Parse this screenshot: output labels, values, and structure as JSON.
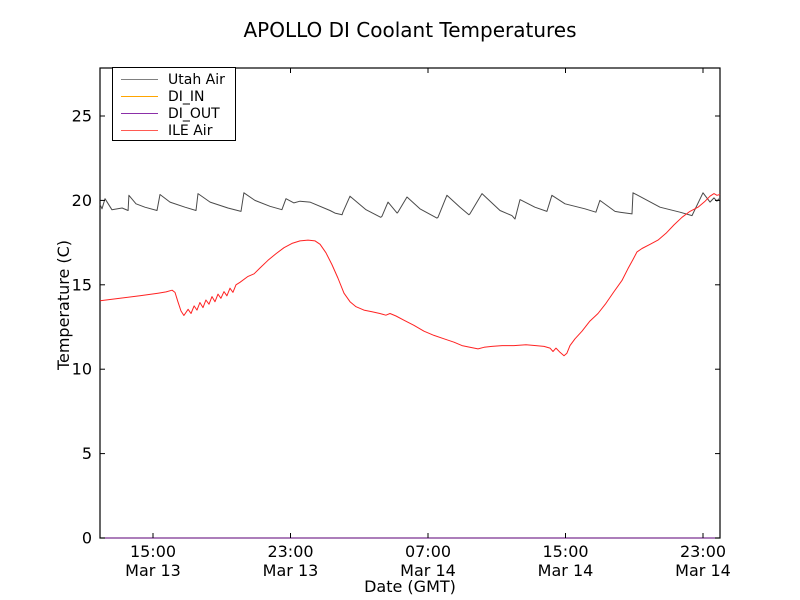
{
  "figure": {
    "background": "#ffffff",
    "spine_color": "#000000",
    "tick_direction": "in"
  },
  "chart_data": {
    "type": "line",
    "title": "APOLLO DI Coolant Temperatures",
    "xlabel": "Date (GMT)",
    "ylabel": "Temperature (C)",
    "x_unit": "hours since Mar 13 00:00 GMT",
    "xlim_hours": [
      11.92,
      47.99
    ],
    "ylim": [
      0,
      27.85
    ],
    "yticks": [
      0,
      5,
      10,
      15,
      20,
      25
    ],
    "xticks": [
      {
        "hour": 15,
        "time": "15:00",
        "date": "Mar 13"
      },
      {
        "hour": 23,
        "time": "23:00",
        "date": "Mar 13"
      },
      {
        "hour": 31,
        "time": "07:00",
        "date": "Mar 14"
      },
      {
        "hour": 39,
        "time": "15:00",
        "date": "Mar 14"
      },
      {
        "hour": 47,
        "time": "23:00",
        "date": "Mar 14"
      }
    ],
    "grid": false,
    "legend": {
      "position": "upper-left",
      "entries": [
        "Utah Air",
        "DI_IN",
        "DI_OUT",
        "ILE Air"
      ]
    },
    "series": [
      {
        "name": "Utah Air",
        "color": "#4a4a4a",
        "legend_color": "#808080",
        "points": [
          [
            11.92,
            19.75
          ],
          [
            12.03,
            19.5
          ],
          [
            12.21,
            20.1
          ],
          [
            12.61,
            19.45
          ],
          [
            13.2,
            19.55
          ],
          [
            13.55,
            19.4
          ],
          [
            13.6,
            20.3
          ],
          [
            14.01,
            19.8
          ],
          [
            14.53,
            19.6
          ],
          [
            15.23,
            19.4
          ],
          [
            15.41,
            20.35
          ],
          [
            15.99,
            19.9
          ],
          [
            16.86,
            19.6
          ],
          [
            17.5,
            19.4
          ],
          [
            17.62,
            20.4
          ],
          [
            18.32,
            19.9
          ],
          [
            19.36,
            19.55
          ],
          [
            20.12,
            19.35
          ],
          [
            20.29,
            20.45
          ],
          [
            20.93,
            20.0
          ],
          [
            21.81,
            19.65
          ],
          [
            22.5,
            19.45
          ],
          [
            22.74,
            20.1
          ],
          [
            23.2,
            19.85
          ],
          [
            23.55,
            19.95
          ],
          [
            24.13,
            19.9
          ],
          [
            25.3,
            19.4
          ],
          [
            25.59,
            19.25
          ],
          [
            26.0,
            19.15
          ],
          [
            26.05,
            19.3
          ],
          [
            26.46,
            20.25
          ],
          [
            27.39,
            19.45
          ],
          [
            28.25,
            19.0
          ],
          [
            28.32,
            19.05
          ],
          [
            28.67,
            19.9
          ],
          [
            29.2,
            19.25
          ],
          [
            29.25,
            19.3
          ],
          [
            29.78,
            20.2
          ],
          [
            30.53,
            19.5
          ],
          [
            31.52,
            18.95
          ],
          [
            31.58,
            19.0
          ],
          [
            32.1,
            20.3
          ],
          [
            32.86,
            19.6
          ],
          [
            33.38,
            19.15
          ],
          [
            33.44,
            19.2
          ],
          [
            34.14,
            20.4
          ],
          [
            35.19,
            19.4
          ],
          [
            35.88,
            19.1
          ],
          [
            36.06,
            18.9
          ],
          [
            36.35,
            20.05
          ],
          [
            37.22,
            19.6
          ],
          [
            37.92,
            19.35
          ],
          [
            38.21,
            20.3
          ],
          [
            38.97,
            19.8
          ],
          [
            40.13,
            19.5
          ],
          [
            40.77,
            19.3
          ],
          [
            41.0,
            20.0
          ],
          [
            41.88,
            19.35
          ],
          [
            42.17,
            19.3
          ],
          [
            42.87,
            19.2
          ],
          [
            42.93,
            20.45
          ],
          [
            44.5,
            19.6
          ],
          [
            45.66,
            19.3
          ],
          [
            46.36,
            19.1
          ],
          [
            47.0,
            20.45
          ],
          [
            47.41,
            19.9
          ],
          [
            47.64,
            20.15
          ],
          [
            47.81,
            19.95
          ],
          [
            47.93,
            20.1
          ]
        ]
      },
      {
        "name": "DI_IN",
        "color": "#ffa500",
        "legend_color": "#ffa500",
        "points": [
          [
            11.92,
            0
          ],
          [
            47.99,
            0
          ]
        ]
      },
      {
        "name": "DI_OUT",
        "color": "#8b2fa8",
        "legend_color": "#8b2fa8",
        "points": [
          [
            11.92,
            0
          ],
          [
            47.99,
            0
          ]
        ]
      },
      {
        "name": "ILE Air",
        "color": "#ff2222",
        "legend_color": "#ff5a52",
        "points": [
          [
            11.92,
            14.05
          ],
          [
            13.08,
            14.2
          ],
          [
            14.24,
            14.35
          ],
          [
            15.29,
            14.5
          ],
          [
            15.76,
            14.58
          ],
          [
            16.11,
            14.68
          ],
          [
            16.28,
            14.55
          ],
          [
            16.45,
            14.0
          ],
          [
            16.63,
            13.45
          ],
          [
            16.8,
            13.18
          ],
          [
            17.04,
            13.55
          ],
          [
            17.21,
            13.3
          ],
          [
            17.39,
            13.75
          ],
          [
            17.56,
            13.5
          ],
          [
            17.73,
            13.95
          ],
          [
            17.91,
            13.65
          ],
          [
            18.08,
            14.1
          ],
          [
            18.26,
            13.85
          ],
          [
            18.43,
            14.3
          ],
          [
            18.61,
            14.0
          ],
          [
            18.78,
            14.45
          ],
          [
            18.95,
            14.2
          ],
          [
            19.13,
            14.6
          ],
          [
            19.3,
            14.35
          ],
          [
            19.48,
            14.8
          ],
          [
            19.65,
            14.55
          ],
          [
            19.83,
            15.0
          ],
          [
            20.06,
            15.15
          ],
          [
            20.53,
            15.5
          ],
          [
            20.88,
            15.65
          ],
          [
            21.23,
            16.0
          ],
          [
            21.69,
            16.45
          ],
          [
            22.16,
            16.85
          ],
          [
            22.62,
            17.2
          ],
          [
            23.09,
            17.45
          ],
          [
            23.55,
            17.6
          ],
          [
            24.02,
            17.65
          ],
          [
            24.43,
            17.6
          ],
          [
            24.72,
            17.4
          ],
          [
            25.06,
            16.9
          ],
          [
            25.41,
            16.2
          ],
          [
            25.76,
            15.4
          ],
          [
            26.11,
            14.5
          ],
          [
            26.46,
            14.0
          ],
          [
            26.81,
            13.7
          ],
          [
            27.27,
            13.5
          ],
          [
            27.74,
            13.4
          ],
          [
            28.2,
            13.3
          ],
          [
            28.55,
            13.2
          ],
          [
            28.79,
            13.3
          ],
          [
            29.14,
            13.15
          ],
          [
            29.6,
            12.9
          ],
          [
            30.18,
            12.6
          ],
          [
            30.77,
            12.25
          ],
          [
            31.35,
            12.0
          ],
          [
            31.93,
            11.8
          ],
          [
            32.51,
            11.6
          ],
          [
            32.98,
            11.4
          ],
          [
            33.44,
            11.3
          ],
          [
            33.91,
            11.2
          ],
          [
            34.26,
            11.3
          ],
          [
            34.72,
            11.35
          ],
          [
            35.31,
            11.4
          ],
          [
            36.0,
            11.4
          ],
          [
            36.7,
            11.45
          ],
          [
            37.28,
            11.4
          ],
          [
            37.75,
            11.35
          ],
          [
            38.1,
            11.25
          ],
          [
            38.27,
            11.05
          ],
          [
            38.45,
            11.25
          ],
          [
            38.68,
            11.0
          ],
          [
            38.91,
            10.8
          ],
          [
            39.08,
            10.95
          ],
          [
            39.26,
            11.4
          ],
          [
            39.55,
            11.8
          ],
          [
            39.96,
            12.25
          ],
          [
            40.42,
            12.85
          ],
          [
            40.89,
            13.3
          ],
          [
            41.35,
            13.9
          ],
          [
            41.82,
            14.6
          ],
          [
            42.28,
            15.25
          ],
          [
            42.63,
            15.95
          ],
          [
            42.93,
            16.5
          ],
          [
            43.16,
            16.95
          ],
          [
            43.45,
            17.15
          ],
          [
            43.92,
            17.4
          ],
          [
            44.38,
            17.65
          ],
          [
            44.85,
            18.05
          ],
          [
            45.31,
            18.55
          ],
          [
            45.78,
            19.0
          ],
          [
            46.24,
            19.35
          ],
          [
            46.71,
            19.6
          ],
          [
            47.12,
            19.95
          ],
          [
            47.41,
            20.25
          ],
          [
            47.64,
            20.4
          ],
          [
            47.81,
            20.3
          ],
          [
            47.99,
            20.35
          ]
        ]
      }
    ]
  }
}
